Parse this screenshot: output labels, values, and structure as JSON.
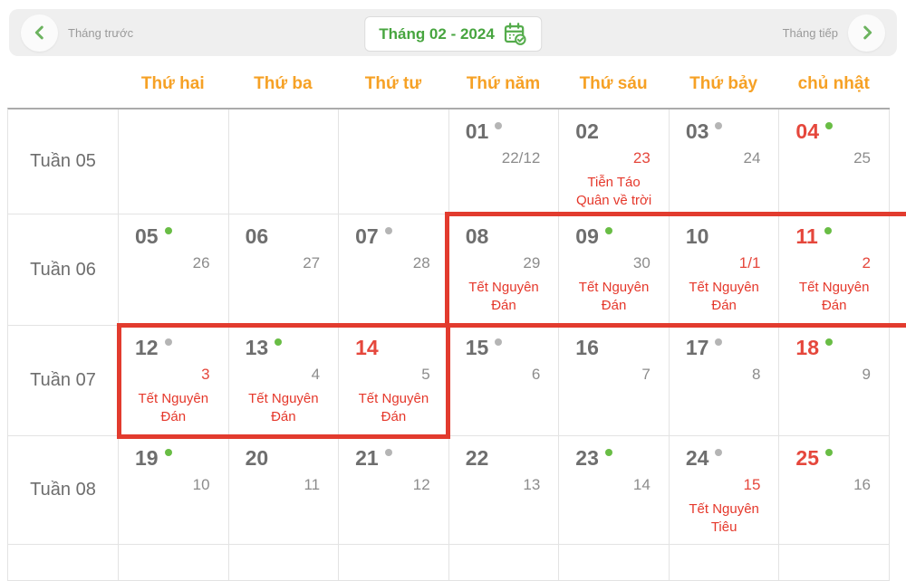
{
  "toolbar": {
    "prev_label": "Tháng trước",
    "month_label": "Tháng 02 - 2024",
    "next_label": "Tháng tiếp"
  },
  "icons": {
    "prev": "chevron-left",
    "next": "chevron-right",
    "month_picker": "calendar-check"
  },
  "weekday_headers": [
    "Thứ hai",
    "Thứ ba",
    "Thứ tư",
    "Thứ năm",
    "Thứ sáu",
    "Thứ bảy",
    "chủ nhật"
  ],
  "weeks": [
    {
      "label": "Tuần 05",
      "days": [
        {},
        {},
        {},
        {
          "solar": "01",
          "dot": "gray",
          "lunar": "22/12"
        },
        {
          "solar": "02",
          "lunar": "23",
          "lunar_red": true,
          "holiday": "Tiễn Táo\nQuân về trời"
        },
        {
          "solar": "03",
          "dot": "gray",
          "lunar": "24"
        },
        {
          "solar": "04",
          "solar_red": true,
          "dot": "green",
          "lunar": "25"
        }
      ]
    },
    {
      "label": "Tuần 06",
      "days": [
        {
          "solar": "05",
          "dot": "green",
          "lunar": "26"
        },
        {
          "solar": "06",
          "lunar": "27"
        },
        {
          "solar": "07",
          "dot": "gray",
          "lunar": "28"
        },
        {
          "solar": "08",
          "lunar": "29",
          "holiday": "Tết Nguyên\nĐán"
        },
        {
          "solar": "09",
          "dot": "green",
          "lunar": "30",
          "holiday": "Tết Nguyên\nĐán"
        },
        {
          "solar": "10",
          "lunar": "1/1",
          "lunar_red": true,
          "holiday": "Tết Nguyên\nĐán"
        },
        {
          "solar": "11",
          "solar_red": true,
          "dot": "green",
          "lunar": "2",
          "lunar_red": true,
          "holiday": "Tết Nguyên\nĐán"
        }
      ]
    },
    {
      "label": "Tuần 07",
      "days": [
        {
          "solar": "12",
          "dot": "gray",
          "lunar": "3",
          "lunar_red": true,
          "holiday": "Tết Nguyên\nĐán"
        },
        {
          "solar": "13",
          "dot": "green",
          "lunar": "4",
          "holiday": "Tết Nguyên\nĐán"
        },
        {
          "solar": "14",
          "solar_red": true,
          "lunar": "5",
          "holiday": "Tết Nguyên\nĐán"
        },
        {
          "solar": "15",
          "dot": "gray",
          "lunar": "6"
        },
        {
          "solar": "16",
          "lunar": "7"
        },
        {
          "solar": "17",
          "dot": "gray",
          "lunar": "8"
        },
        {
          "solar": "18",
          "solar_red": true,
          "dot": "green",
          "lunar": "9"
        }
      ]
    },
    {
      "label": "Tuần 08",
      "days": [
        {
          "solar": "19",
          "dot": "green",
          "lunar": "10"
        },
        {
          "solar": "20",
          "lunar": "11"
        },
        {
          "solar": "21",
          "dot": "gray",
          "lunar": "12"
        },
        {
          "solar": "22",
          "lunar": "13"
        },
        {
          "solar": "23",
          "dot": "green",
          "lunar": "14"
        },
        {
          "solar": "24",
          "dot": "gray",
          "lunar": "15",
          "lunar_red": true,
          "holiday": "Tết Nguyên\nTiêu"
        },
        {
          "solar": "25",
          "solar_red": true,
          "dot": "green",
          "lunar": "16"
        }
      ]
    }
  ],
  "colors": {
    "accent_orange": "#F6A125",
    "accent_green": "#47A53F",
    "chevron_green": "#6CB35F",
    "accent_red": "#E5473C",
    "highlight_border": "#E23B2E",
    "dot_green": "#69BD45",
    "dot_gray": "#B5B5B5"
  }
}
